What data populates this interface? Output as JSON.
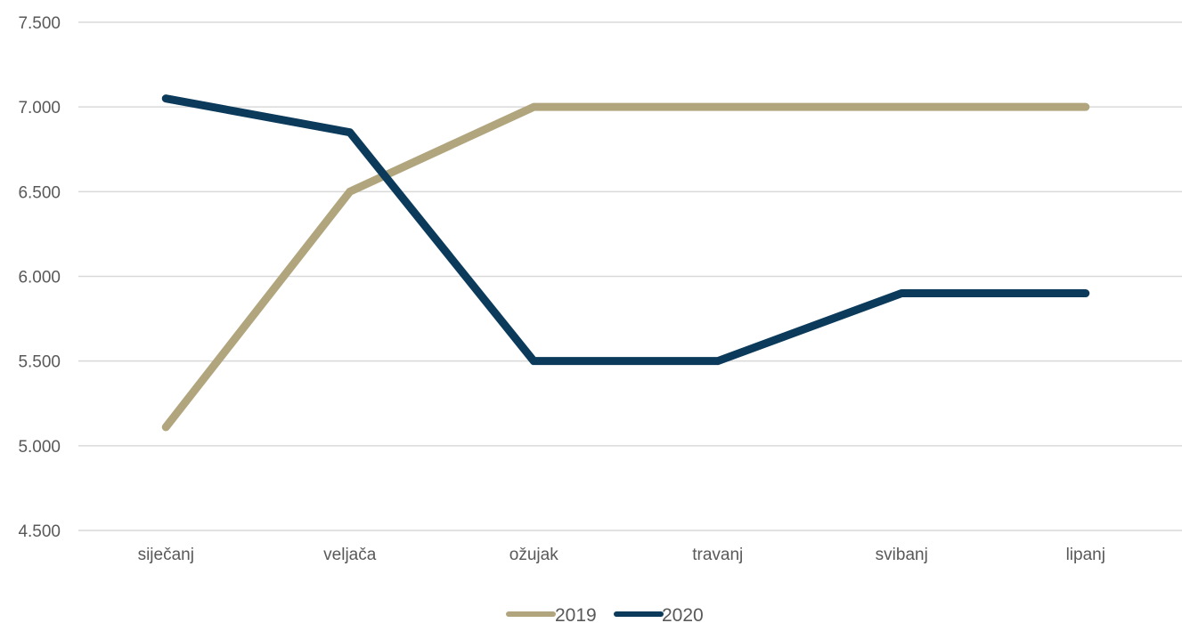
{
  "chart_data": {
    "type": "line",
    "categories": [
      "siječanj",
      "veljača",
      "ožujak",
      "travanj",
      "svibanj",
      "lipanj"
    ],
    "series": [
      {
        "name": "2019",
        "values": [
          5110,
          6500,
          7000,
          7000,
          7000,
          7000
        ],
        "color": "#b1a57e"
      },
      {
        "name": "2020",
        "values": [
          7050,
          6850,
          5500,
          5500,
          5900,
          5900
        ],
        "color": "#0b3a5b"
      }
    ],
    "y_ticks": [
      "4.500",
      "5.000",
      "5.500",
      "6.000",
      "6.500",
      "7.000",
      "7.500"
    ],
    "ylim": [
      4500,
      7500
    ],
    "y_step": 500,
    "grid": true,
    "legend_position": "bottom",
    "gridline_color": "#d9d9d9"
  }
}
